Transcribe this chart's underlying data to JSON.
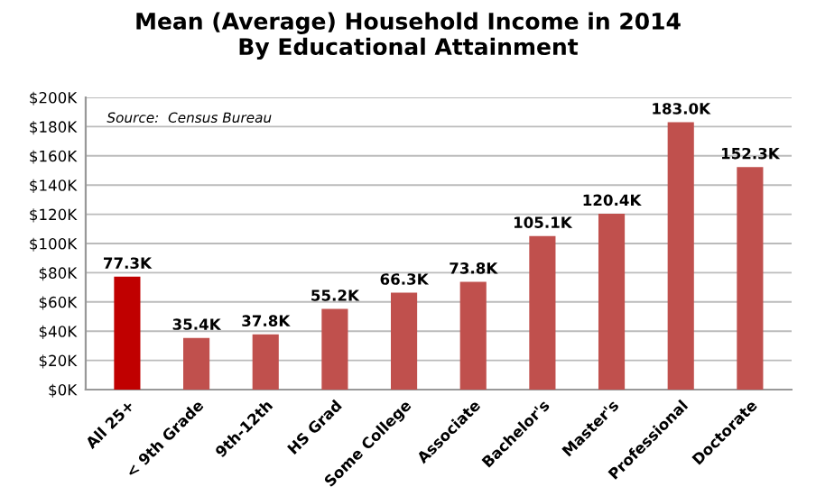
{
  "chart_data": {
    "type": "bar",
    "title": "Mean (Average) Household Income in 2014\nBy Educational Attainment",
    "categories": [
      "All 25+",
      "< 9th Grade",
      "9th-12th",
      "HS Grad",
      "Some College",
      "Associate",
      "Bachelor's",
      "Master's",
      "Professional",
      "Doctorate"
    ],
    "values": [
      77.3,
      35.4,
      37.8,
      55.2,
      66.3,
      73.8,
      105.1,
      120.4,
      183.0,
      152.3
    ],
    "colors": [
      "#c00000",
      "#c0504d",
      "#c0504d",
      "#c0504d",
      "#c0504d",
      "#c0504d",
      "#c0504d",
      "#c0504d",
      "#c0504d",
      "#c0504d"
    ],
    "value_labels": [
      "77.3K",
      "35.4K",
      "37.8K",
      "55.2K",
      "66.3K",
      "73.8K",
      "105.1K",
      "120.4K",
      "183.0K",
      "152.3K"
    ],
    "ylim": [
      0,
      200
    ],
    "yticks": [
      {
        "value": 0,
        "label": "$0K"
      },
      {
        "value": 20,
        "label": "$20K"
      },
      {
        "value": 40,
        "label": "$40K"
      },
      {
        "value": 60,
        "label": "$60K"
      },
      {
        "value": 80,
        "label": "$80K"
      },
      {
        "value": 100,
        "label": "$100K"
      },
      {
        "value": 120,
        "label": "$120K"
      },
      {
        "value": 140,
        "label": "$140K"
      },
      {
        "value": 160,
        "label": "$160K"
      },
      {
        "value": 180,
        "label": "$180K"
      },
      {
        "value": 200,
        "label": "$200K"
      }
    ],
    "grid": "y",
    "annotations": [
      "Source:  Census Bureau"
    ]
  }
}
